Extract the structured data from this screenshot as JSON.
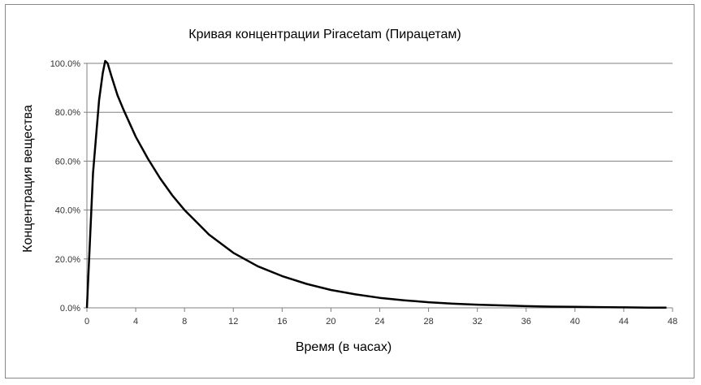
{
  "chart_data": {
    "type": "line",
    "title": "Кривая концентрации Piracetam (Пирацетам)",
    "xlabel": "Время (в часах)",
    "ylabel": "Концентрация вещества",
    "xlim": [
      0,
      48
    ],
    "ylim": [
      0,
      100
    ],
    "x_ticks": [
      "0",
      "4",
      "8",
      "12",
      "16",
      "20",
      "24",
      "28",
      "32",
      "36",
      "40",
      "44",
      "48"
    ],
    "y_ticks": [
      "0.0%",
      "20.0%",
      "40.0%",
      "60.0%",
      "80.0%",
      "100.0%"
    ],
    "grid": "horizontal",
    "legend": "none",
    "colors": {
      "line": "#000000",
      "grid": "#808080",
      "axis": "#808080"
    },
    "series": [
      {
        "x": [
          0,
          0.5,
          1,
          1.3,
          1.5,
          1.7,
          2,
          2.5,
          3,
          4,
          5,
          6,
          7,
          8,
          9,
          10,
          12,
          14,
          16,
          18,
          20,
          22,
          24,
          26,
          28,
          30,
          32,
          34,
          36,
          38,
          40,
          42,
          44,
          46,
          47.5
        ],
        "y": [
          0,
          55,
          85,
          96,
          101,
          100,
          95,
          87,
          81,
          70,
          61,
          53,
          46,
          40,
          35,
          30,
          22.5,
          17,
          13,
          9.8,
          7.3,
          5.5,
          4.1,
          3.1,
          2.3,
          1.7,
          1.3,
          1.0,
          0.7,
          0.5,
          0.4,
          0.3,
          0.2,
          0.1,
          0.1
        ]
      }
    ]
  }
}
